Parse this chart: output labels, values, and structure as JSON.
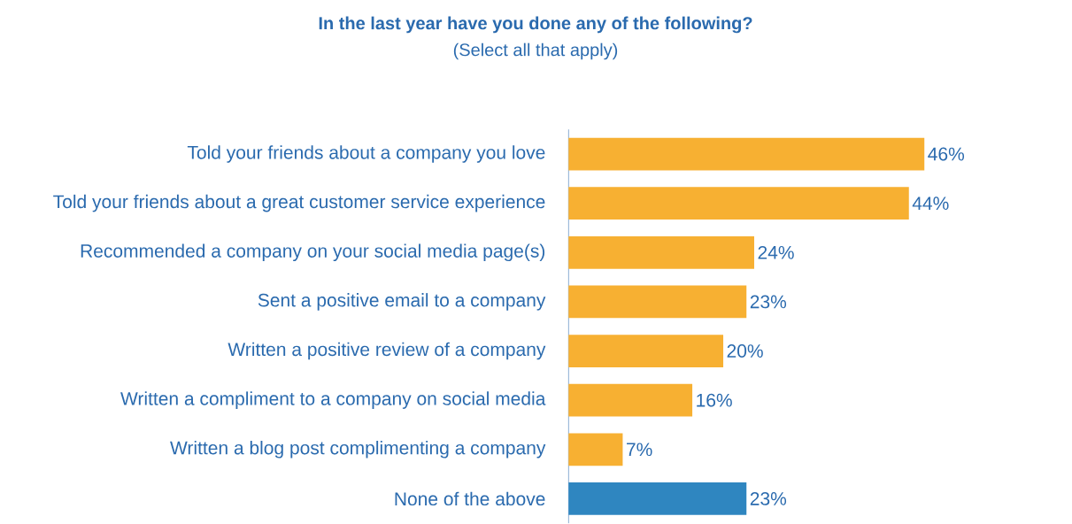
{
  "chart_data": {
    "type": "bar",
    "orientation": "horizontal",
    "title": "In the last year have you done any of the following?",
    "subtitle": "(Select all that apply)",
    "categories": [
      "Told your friends about a company you love",
      "Told your friends about a great customer service experience",
      "Recommended a company on your social media page(s)",
      "Sent a positive email to a company",
      "Written a positive review of a company",
      "Written a compliment to a company on social media",
      "Written a blog post complimenting a company",
      "None of the above"
    ],
    "values": [
      46,
      44,
      24,
      23,
      20,
      16,
      7,
      23
    ],
    "colors": [
      "#f7b032",
      "#f7b032",
      "#f7b032",
      "#f7b032",
      "#f7b032",
      "#f7b032",
      "#f7b032",
      "#2f86c0"
    ],
    "value_labels": [
      "46%",
      "44%",
      "24%",
      "23%",
      "20%",
      "16%",
      "7%",
      "23%"
    ]
  }
}
